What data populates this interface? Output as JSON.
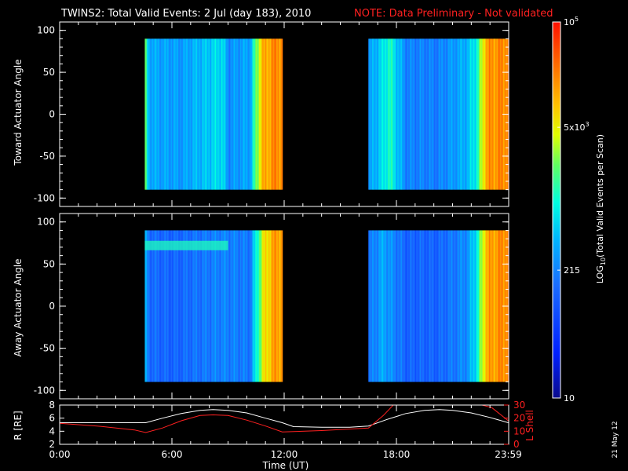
{
  "header": {
    "title": "TWINS2: Total Valid Events:  2 Jul (day 183), 2010",
    "note": "NOTE: Data Preliminary - Not validated"
  },
  "footer": {
    "date_stamp": "21 May 12"
  },
  "colors": {
    "background": "#000000",
    "foreground": "#ffffff",
    "note": "#ff2020",
    "lshell": "#ff2020",
    "radius_line": "#ffffff"
  },
  "chart_data": [
    {
      "type": "heatmap",
      "ylabel": "Toward Actuator Angle",
      "ylim": [
        -110,
        110
      ],
      "y_ticks": [
        "100",
        "50",
        "0",
        "-50",
        "-100"
      ],
      "y_tick_values": [
        100,
        50,
        0,
        -50,
        -100
      ],
      "x_range_hours": [
        0,
        24
      ],
      "data_blocks_ut": [
        [
          4.55,
          11.9
        ],
        [
          16.5,
          24.0
        ]
      ],
      "color_profile": [
        {
          "t": 4.55,
          "v": 0.62
        },
        {
          "t": 4.75,
          "v": 0.42
        },
        {
          "t": 5.0,
          "v": 0.4
        },
        {
          "t": 6.5,
          "v": 0.38
        },
        {
          "t": 8.7,
          "v": 0.48
        },
        {
          "t": 9.0,
          "v": 0.36
        },
        {
          "t": 10.2,
          "v": 0.4
        },
        {
          "t": 10.4,
          "v": 0.55
        },
        {
          "t": 10.8,
          "v": 0.78
        },
        {
          "t": 11.6,
          "v": 0.86
        },
        {
          "t": 16.5,
          "v": 0.36
        },
        {
          "t": 17.3,
          "v": 0.48
        },
        {
          "t": 17.6,
          "v": 0.55
        },
        {
          "t": 18.5,
          "v": 0.34
        },
        {
          "t": 20.2,
          "v": 0.33
        },
        {
          "t": 21.8,
          "v": 0.42
        },
        {
          "t": 22.3,
          "v": 0.52
        },
        {
          "t": 22.8,
          "v": 0.82
        },
        {
          "t": 23.9,
          "v": 0.86
        }
      ]
    },
    {
      "type": "heatmap",
      "ylabel": "Away Actuator Angle",
      "ylim": [
        -110,
        110
      ],
      "y_ticks": [
        "100",
        "50",
        "0",
        "-50",
        "-100"
      ],
      "y_tick_values": [
        100,
        50,
        0,
        -50,
        -100
      ],
      "x_range_hours": [
        0,
        24
      ],
      "data_blocks_ut": [
        [
          4.55,
          11.9
        ],
        [
          16.5,
          24.0
        ]
      ],
      "color_profile": [
        {
          "t": 4.55,
          "v": 0.4
        },
        {
          "t": 4.8,
          "v": 0.3
        },
        {
          "t": 6.0,
          "v": 0.28
        },
        {
          "t": 8.7,
          "v": 0.34
        },
        {
          "t": 10.2,
          "v": 0.32
        },
        {
          "t": 10.4,
          "v": 0.45
        },
        {
          "t": 10.9,
          "v": 0.72
        },
        {
          "t": 11.6,
          "v": 0.84
        },
        {
          "t": 16.5,
          "v": 0.3
        },
        {
          "t": 17.3,
          "v": 0.4
        },
        {
          "t": 18.5,
          "v": 0.28
        },
        {
          "t": 20.2,
          "v": 0.28
        },
        {
          "t": 21.8,
          "v": 0.36
        },
        {
          "t": 22.3,
          "v": 0.5
        },
        {
          "t": 22.8,
          "v": 0.8
        },
        {
          "t": 23.9,
          "v": 0.86
        }
      ],
      "annotation_band": {
        "angle": 72,
        "t_start": 4.55,
        "t_end": 9.0,
        "v": 0.55
      }
    },
    {
      "type": "line",
      "ylabel": "R [RE]",
      "ylabel_right": "L Shell",
      "ylim": [
        2,
        8
      ],
      "y_ticks": [
        "8",
        "6",
        "4",
        "2"
      ],
      "y_tick_values": [
        8,
        6,
        4,
        2
      ],
      "ylim_right": [
        0,
        30
      ],
      "y_ticks_right": [
        "30",
        "20",
        "10",
        "0"
      ],
      "y_tick_values_right": [
        30,
        20,
        10,
        0
      ],
      "x_tick_labels": [
        "0:00",
        "6:00",
        "12:00",
        "18:00",
        "23:59"
      ],
      "x_tick_hours": [
        0,
        6,
        12,
        18,
        23.98
      ],
      "xlabel": "Time (UT)",
      "series": [
        {
          "axis": "left",
          "color": "#ffffff",
          "x": [
            0,
            1,
            2,
            3,
            4,
            4.6,
            5.5,
            6.5,
            7.5,
            8.2,
            9,
            10,
            11,
            11.9,
            12.5,
            14,
            15.5,
            16.5,
            17.5,
            18.5,
            19.5,
            20.3,
            21,
            22,
            23,
            23.98
          ],
          "y": [
            5.3,
            5.3,
            5.3,
            5.3,
            5.3,
            5.3,
            6.0,
            6.7,
            7.2,
            7.3,
            7.2,
            6.8,
            6.0,
            5.3,
            4.7,
            4.6,
            4.6,
            4.8,
            5.8,
            6.7,
            7.2,
            7.3,
            7.2,
            6.8,
            6.1,
            5.3
          ]
        },
        {
          "axis": "right",
          "color": "#ff2020",
          "x": [
            0,
            2,
            4,
            4.6,
            5.5,
            6.5,
            7.5,
            8.2,
            9,
            10,
            11,
            11.9,
            14,
            16.5,
            17.3,
            17.9,
            22.3,
            23.1,
            23.98
          ],
          "y": [
            16,
            14,
            11,
            9,
            12.5,
            18,
            22,
            22.5,
            22,
            18.5,
            14,
            9.5,
            10.5,
            12.5,
            22,
            31,
            31,
            28,
            18
          ]
        }
      ]
    }
  ],
  "colorbar": {
    "label": "LOG",
    "label_sub": "10",
    "label_rest": "(Total Valid Events per Scan)",
    "ticks": [
      {
        "base": "10",
        "sup": "5",
        "frac": 1.0
      },
      {
        "base": "5x10",
        "sup": "3",
        "frac": 0.72
      },
      {
        "base": "215",
        "sup": "",
        "frac": 0.34
      },
      {
        "base": "10",
        "sup": "",
        "frac": 0.0
      }
    ]
  }
}
